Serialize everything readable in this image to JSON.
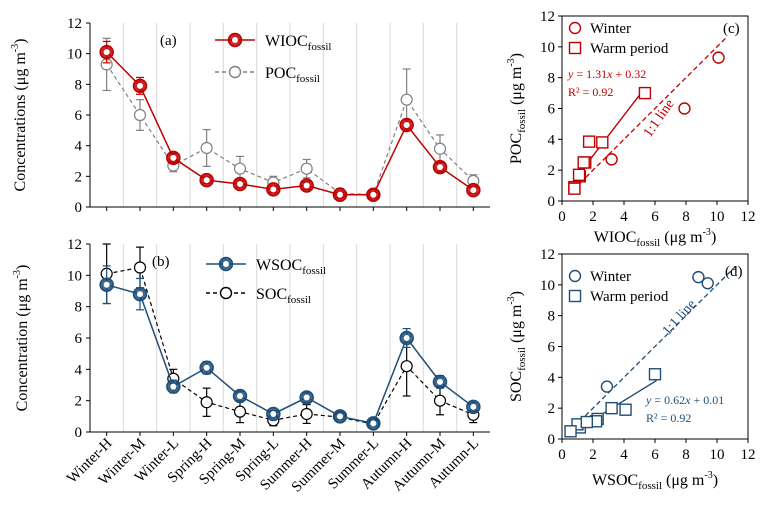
{
  "chart_data": [
    {
      "id": "a",
      "type": "line",
      "panel_label": "(a)",
      "ylabel": "Concentrations (μg m⁻³)",
      "ylabel_main": "Concentrations (μg m",
      "ylabel_sup": "-3",
      "ylabel_close": ")",
      "ylim": [
        0,
        12
      ],
      "yticks": [
        0,
        2,
        4,
        6,
        8,
        10,
        12
      ],
      "categories": [
        "Winter-H",
        "Winter-M",
        "Winter-L",
        "Spring-H",
        "Spring-M",
        "Spring-L",
        "Summer-H",
        "Summer-M",
        "Summer-L",
        "Autumn-H",
        "Autumn-M",
        "Autumn-L"
      ],
      "series": [
        {
          "name": "WIOC_fossil",
          "name_main": "WIOC",
          "name_sub": "fossil",
          "color": "#c00000",
          "style": "solid",
          "values": [
            10.1,
            7.9,
            3.2,
            1.75,
            1.5,
            1.15,
            1.4,
            0.8,
            0.8,
            5.35,
            2.6,
            1.1
          ],
          "errors": [
            0.7,
            0.55,
            0.3,
            0.2,
            0.2,
            0.2,
            0.25,
            0.15,
            0.15,
            0.35,
            0.3,
            0.2
          ]
        },
        {
          "name": "POC_fossil",
          "name_main": "POC",
          "name_sub": "fossil",
          "color": "#808080",
          "style": "dashed",
          "values": [
            9.3,
            6.0,
            2.7,
            3.85,
            2.5,
            1.6,
            2.5,
            0.9,
            0.8,
            7.0,
            3.8,
            1.7
          ],
          "errors": [
            1.7,
            1.0,
            0.4,
            1.2,
            0.8,
            0.4,
            0.6,
            0.3,
            0.2,
            2.0,
            0.9,
            0.4
          ]
        }
      ]
    },
    {
      "id": "b",
      "type": "line",
      "panel_label": "(b)",
      "ylabel": "Concentration (μg m⁻³)",
      "ylabel_main": "Concentration (μg m",
      "ylabel_sup": "-3",
      "ylabel_close": ")",
      "ylim": [
        0,
        12
      ],
      "yticks": [
        0,
        2,
        4,
        6,
        8,
        10,
        12
      ],
      "categories": [
        "Winter-H",
        "Winter-M",
        "Winter-L",
        "Spring-H",
        "Spring-M",
        "Spring-L",
        "Summer-H",
        "Summer-M",
        "Summer-L",
        "Autumn-H",
        "Autumn-M",
        "Autumn-L"
      ],
      "series": [
        {
          "name": "WSOC_fossil",
          "name_main": "WSOC",
          "name_sub": "fossil",
          "color": "#1f4e79",
          "style": "solid",
          "values": [
            9.4,
            8.8,
            2.9,
            4.1,
            2.3,
            1.15,
            2.2,
            1.0,
            0.55,
            6.0,
            3.2,
            1.6
          ],
          "errors": [
            1.2,
            1.0,
            0.4,
            0.4,
            0.3,
            0.2,
            0.3,
            0.2,
            0.15,
            0.6,
            0.4,
            0.3
          ]
        },
        {
          "name": "SOC_fossil",
          "name_main": "SOC",
          "name_sub": "fossil",
          "color": "#000000",
          "style": "dashed",
          "values": [
            10.1,
            10.5,
            3.4,
            1.9,
            1.3,
            0.75,
            1.15,
            0.95,
            0.5,
            4.2,
            2.0,
            1.1
          ],
          "errors": [
            1.9,
            1.3,
            0.6,
            0.9,
            0.7,
            0.35,
            0.6,
            0.25,
            0.15,
            1.9,
            0.9,
            0.5
          ]
        }
      ]
    },
    {
      "id": "c",
      "type": "scatter",
      "panel_label": "(c)",
      "xlabel_main": "WIOC",
      "xlabel_sub": "fossil",
      "xlabel_rest": " (μg m",
      "xlabel_sup": "-3",
      "ylabel_main": "POC",
      "ylabel_sub": "fossil",
      "ylabel_rest": " (μg m",
      "ylabel_sup": "-3",
      "axis_close": ")",
      "xlim": [
        0,
        12
      ],
      "ylim": [
        0,
        12
      ],
      "xticks": [
        0,
        2,
        4,
        6,
        8,
        10,
        12
      ],
      "yticks": [
        0,
        2,
        4,
        6,
        8,
        10,
        12
      ],
      "color": "#c00000",
      "legend": [
        {
          "label": "Winter",
          "marker": "circle"
        },
        {
          "label": "Warm period",
          "marker": "square"
        }
      ],
      "series": [
        {
          "name": "Winter",
          "marker": "circle",
          "x": [
            10.1,
            7.9,
            3.2
          ],
          "y": [
            9.3,
            6.0,
            2.7
          ]
        },
        {
          "name": "Warm period",
          "marker": "square",
          "x": [
            1.75,
            1.5,
            1.15,
            1.4,
            0.8,
            0.8,
            5.35,
            2.6,
            1.1
          ],
          "y": [
            3.85,
            2.5,
            1.6,
            2.5,
            0.9,
            0.8,
            7.0,
            3.8,
            1.7
          ]
        }
      ],
      "fit": {
        "slope": 1.31,
        "intercept": 0.32,
        "x_range": [
          0.8,
          5.4
        ],
        "line_text_pre": "y",
        "line_text_mid": " = 1.31",
        "line_text_x": "x",
        "line_text_post": " + 0.32",
        "r2_text": "R² = 0.92"
      },
      "one_to_one_label": "1:1 line",
      "one_to_one_range": [
        0.8,
        10.6
      ]
    },
    {
      "id": "d",
      "type": "scatter",
      "panel_label": "(d)",
      "xlabel_main": "WSOC",
      "xlabel_sub": "fossil",
      "xlabel_rest": " (μg m",
      "xlabel_sup": "-3",
      "ylabel_main": "SOC",
      "ylabel_sub": "fossil",
      "ylabel_rest": " (μg m",
      "ylabel_sup": "-3",
      "axis_close": ")",
      "xlim": [
        0,
        12
      ],
      "ylim": [
        0,
        12
      ],
      "xticks": [
        0,
        2,
        4,
        6,
        8,
        10,
        12
      ],
      "yticks": [
        0,
        2,
        4,
        6,
        8,
        10,
        12
      ],
      "color": "#1f4e79",
      "legend": [
        {
          "label": "Winter",
          "marker": "circle"
        },
        {
          "label": "Warm period",
          "marker": "square"
        }
      ],
      "series": [
        {
          "name": "Winter",
          "marker": "circle",
          "x": [
            9.4,
            8.8,
            2.9
          ],
          "y": [
            10.1,
            10.5,
            3.4
          ]
        },
        {
          "name": "Warm period",
          "marker": "square",
          "x": [
            4.1,
            2.3,
            1.15,
            2.2,
            1.0,
            0.55,
            6.0,
            3.2,
            1.6
          ],
          "y": [
            1.9,
            1.3,
            0.75,
            1.15,
            0.95,
            0.5,
            4.2,
            2.0,
            1.1
          ]
        }
      ],
      "fit": {
        "slope": 0.62,
        "intercept": 0.01,
        "x_range": [
          0.5,
          6.1
        ],
        "line_text_pre": "y",
        "line_text_mid": " = 0.62",
        "line_text_x": "x",
        "line_text_post": " + 0.01",
        "r2_text": "R² = 0.92"
      },
      "one_to_one_label": "1:1 line",
      "one_to_one_range": [
        0.4,
        11.2
      ]
    }
  ]
}
